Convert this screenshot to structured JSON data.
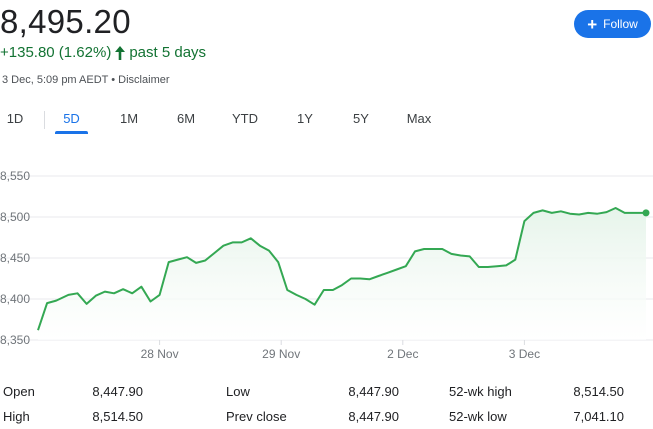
{
  "header": {
    "price": "8,495.20",
    "change": "+135.80 (1.62%)",
    "change_period": "past 5 days",
    "timestamp": "3 Dec, 5:09 pm AEDT",
    "separator": "•",
    "disclaimer": "Disclaimer",
    "up_color": "#137333"
  },
  "follow_button": {
    "label": "Follow",
    "icon": "plus-icon",
    "color": "#1a73e8"
  },
  "tabs": [
    {
      "label": "1D",
      "active": false
    },
    {
      "label": "5D",
      "active": true
    },
    {
      "label": "1M",
      "active": false
    },
    {
      "label": "6M",
      "active": false
    },
    {
      "label": "YTD",
      "active": false
    },
    {
      "label": "1Y",
      "active": false
    },
    {
      "label": "5Y",
      "active": false
    },
    {
      "label": "Max",
      "active": false
    }
  ],
  "chart_data": {
    "type": "area",
    "line_color": "#34a853",
    "fill_color": "#e6f4ea",
    "grid": true,
    "ylim": [
      8350,
      8550
    ],
    "yticks": [
      8550,
      8500,
      8450,
      8400,
      8350
    ],
    "ytick_labels": [
      "8,550",
      "8,500",
      "8,450",
      "8,400",
      "8,350"
    ],
    "xlim": [
      0,
      100
    ],
    "xticks": [
      {
        "x": 20.0,
        "label": "28 Nov"
      },
      {
        "x": 40.0,
        "label": "29 Nov"
      },
      {
        "x": 60.0,
        "label": "2 Dec"
      },
      {
        "x": 80.0,
        "label": "3 Dec"
      }
    ],
    "series": [
      {
        "x": [
          0,
          1.5,
          3,
          5,
          6.5,
          8,
          9.5,
          11,
          12.5,
          14,
          15.5,
          17,
          18.5,
          20,
          21.5,
          23,
          24.5,
          26,
          27.5,
          29,
          30.5,
          32,
          33.5,
          35,
          36.5,
          38,
          39.5,
          41,
          42.5,
          44,
          45.5,
          47,
          48.5,
          50,
          51.5,
          53,
          54.5,
          56,
          57.5,
          59,
          60.5,
          62,
          63.5,
          65,
          66.5,
          68,
          69.5,
          71,
          72.5,
          74,
          75.5,
          77,
          78.5,
          80,
          81.5,
          83,
          84.5,
          86,
          87.5,
          89,
          90.5,
          92,
          93.5,
          95,
          96.5,
          98,
          100
        ],
        "y": [
          8362,
          8395,
          8398,
          8405,
          8407,
          8394,
          8404,
          8409,
          8407,
          8412,
          8407,
          8415,
          8397,
          8405,
          8445,
          8448,
          8451,
          8444,
          8447,
          8456,
          8465,
          8469,
          8469,
          8474,
          8465,
          8459,
          8445,
          8411,
          8405,
          8400,
          8393,
          8411,
          8411,
          8417,
          8425,
          8425,
          8424,
          8428,
          8432,
          8436,
          8440,
          8458,
          8461,
          8461,
          8461,
          8455,
          8453,
          8452,
          8439,
          8439,
          8440,
          8441,
          8448,
          8495,
          8505,
          8508,
          8505,
          8507,
          8504,
          8503,
          8505,
          8504,
          8506,
          8511,
          8505,
          8505,
          8505
        ]
      }
    ],
    "last_point": {
      "x": 100,
      "y": 8505
    }
  },
  "stats": {
    "rows": [
      [
        {
          "label": "Open",
          "value": "8,447.90"
        },
        {
          "label": "Low",
          "value": "8,447.90"
        },
        {
          "label": "52-wk high",
          "value": "8,514.50"
        }
      ],
      [
        {
          "label": "High",
          "value": "8,514.50"
        },
        {
          "label": "Prev close",
          "value": "8,447.90"
        },
        {
          "label": "52-wk low",
          "value": "7,041.10"
        }
      ]
    ]
  }
}
